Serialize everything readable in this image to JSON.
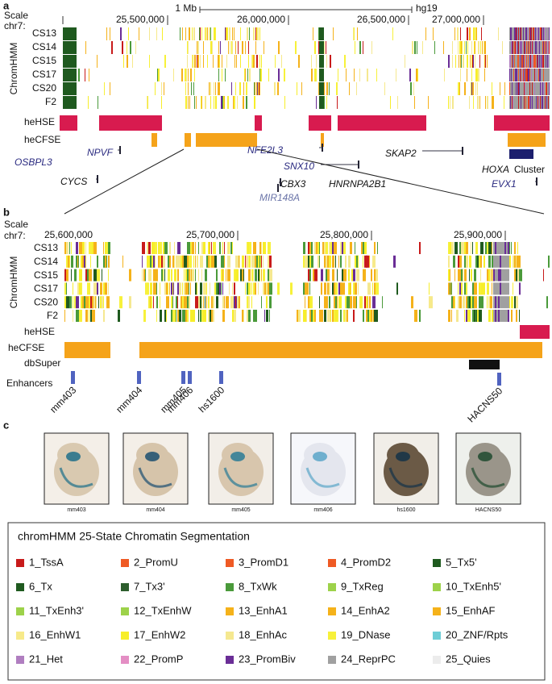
{
  "panel_a": {
    "label": "a",
    "scale": "Scale",
    "chrom": "chr7:",
    "scale_bar": "1 Mb",
    "assembly": "hg19",
    "ticks": [
      "25,500,000",
      "26,000,000",
      "26,500,000",
      "27,000,000"
    ],
    "track_group": "ChromHMM",
    "tracks": [
      "CS13",
      "CS14",
      "CS15",
      "CS17",
      "CS20",
      "F2"
    ],
    "hse": "heHSE",
    "cfse": "heCFSE",
    "genes": [
      "OSBPL3",
      "NPVF",
      "CYCS",
      "NFE2L3",
      "SNX10",
      "CBX3",
      "HNRNPA2B1",
      "MIR148A",
      "SKAP2",
      "EVX1"
    ],
    "hoxa": "HOXA",
    "cluster": "Cluster"
  },
  "panel_b": {
    "label": "b",
    "scale": "Scale",
    "chrom": "chr7:",
    "ticks": [
      "25,600,000",
      "25,700,000",
      "25,800,000",
      "25,900,000"
    ],
    "track_group": "ChromHMM",
    "tracks": [
      "CS13",
      "CS14",
      "CS15",
      "CS17",
      "CS20",
      "F2"
    ],
    "hse": "heHSE",
    "cfse": "heCFSE",
    "dbsuper": "dbSuper",
    "enhancers_label": "Enhancers",
    "enhancers": [
      "mm403",
      "mm404",
      "mm405",
      "mm406",
      "hs1600",
      "HACNS50"
    ]
  },
  "panel_c": {
    "label": "c",
    "images": [
      "mm403",
      "mm404",
      "mm405",
      "mm406",
      "hs1600",
      "HACNS50"
    ]
  },
  "legend": {
    "title": "chromHMM 25-State Chromatin Segmentation",
    "items": [
      {
        "name": "1_TssA",
        "color": "#c81a1a"
      },
      {
        "name": "2_PromU",
        "color": "#ef5a24"
      },
      {
        "name": "3_PromD1",
        "color": "#ef5a24"
      },
      {
        "name": "4_PromD2",
        "color": "#ef5a24"
      },
      {
        "name": "5_Tx5'",
        "color": "#1e5a1e"
      },
      {
        "name": "6_Tx",
        "color": "#1f5a1f"
      },
      {
        "name": "7_Tx3'",
        "color": "#2d5e2d"
      },
      {
        "name": "8_TxWk",
        "color": "#4a9a3a"
      },
      {
        "name": "9_TxReg",
        "color": "#9dd24a"
      },
      {
        "name": "10_TxEnh5'",
        "color": "#9dd24a"
      },
      {
        "name": "11_TxEnh3'",
        "color": "#9dd24a"
      },
      {
        "name": "12_TxEnhW",
        "color": "#9dd24a"
      },
      {
        "name": "13_EnhA1",
        "color": "#f5b21a"
      },
      {
        "name": "14_EnhA2",
        "color": "#f5b21a"
      },
      {
        "name": "15_EnhAF",
        "color": "#f5b21a"
      },
      {
        "name": "16_EnhW1",
        "color": "#f7ea8a"
      },
      {
        "name": "17_EnhW2",
        "color": "#f7ee2a"
      },
      {
        "name": "18_EnhAc",
        "color": "#f5e890"
      },
      {
        "name": "19_DNase",
        "color": "#f7f13a"
      },
      {
        "name": "20_ZNF/Rpts",
        "color": "#6ecdd6"
      },
      {
        "name": "21_Het",
        "color": "#b07ec0"
      },
      {
        "name": "22_PromP",
        "color": "#e48ec4"
      },
      {
        "name": "23_PromBiv",
        "color": "#6a2d96"
      },
      {
        "name": "24_ReprPC",
        "color": "#a0a0a0"
      },
      {
        "name": "25_Quies",
        "color": "#ececec"
      }
    ]
  }
}
